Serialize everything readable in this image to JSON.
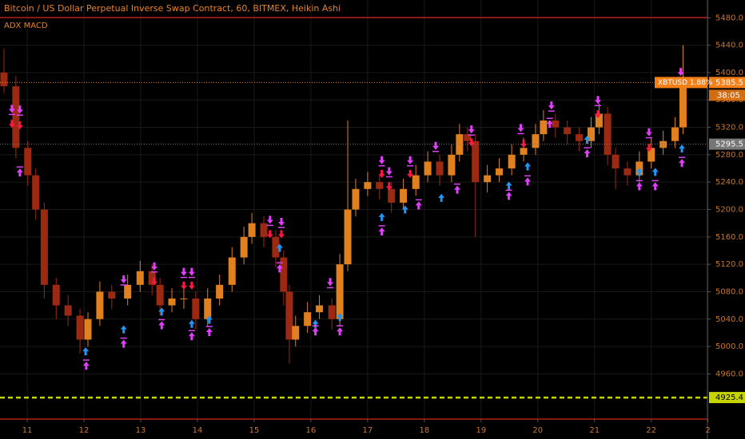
{
  "chart_data": {
    "type": "candlestick",
    "title": "Bitcoin / US Dollar Perpetual Inverse Swap Contract, 60, BITMEX, Heikin Ashi",
    "subtitle": "ADX MACD",
    "x": [
      10.59,
      10.8,
      11.01,
      11.15,
      11.3,
      11.51,
      11.72,
      11.93,
      12.07,
      12.28,
      12.49,
      12.77,
      12.99,
      13.2,
      13.34,
      13.55,
      13.76,
      13.97,
      14.18,
      14.39,
      14.61,
      14.82,
      14.96,
      15.17,
      15.38,
      15.52,
      15.62,
      15.73,
      15.94,
      16.15,
      16.37,
      16.51,
      16.65,
      16.79,
      17,
      17.21,
      17.42,
      17.63,
      17.85,
      18.06,
      18.27,
      18.48,
      18.62,
      18.76,
      18.9,
      19.11,
      19.32,
      19.54,
      19.75,
      19.96,
      20.1,
      20.31,
      20.52,
      20.73,
      20.94,
      21.08,
      21.23,
      21.37,
      21.58,
      21.79,
      22,
      22.21,
      22.42,
      22.56
    ],
    "open": [
      5400,
      5380,
      5290,
      5250,
      5200,
      5090,
      5060,
      5045,
      5010,
      5040,
      5080,
      5070,
      5090,
      5110,
      5090,
      5060,
      5070,
      5070,
      5040,
      5070,
      5090,
      5130,
      5160,
      5180,
      5160,
      5130,
      5080,
      5010,
      5030,
      5050,
      5060,
      5040,
      5120,
      5200,
      5230,
      5240,
      5230,
      5210,
      5230,
      5250,
      5270,
      5250,
      5280,
      5310,
      5300,
      5240,
      5250,
      5260,
      5280,
      5290,
      5310,
      5330,
      5320,
      5310,
      5300,
      5320,
      5340,
      5280,
      5260,
      5250,
      5270,
      5290,
      5300,
      5320
    ],
    "high": [
      5435,
      5395,
      5300,
      5260,
      5210,
      5100,
      5075,
      5055,
      5050,
      5095,
      5090,
      5105,
      5125,
      5120,
      5100,
      5085,
      5085,
      5080,
      5085,
      5105,
      5145,
      5175,
      5195,
      5190,
      5170,
      5140,
      5090,
      5045,
      5065,
      5075,
      5070,
      5135,
      5330,
      5245,
      5255,
      5250,
      5240,
      5245,
      5265,
      5285,
      5280,
      5295,
      5325,
      5320,
      5310,
      5265,
      5275,
      5295,
      5305,
      5325,
      5345,
      5340,
      5330,
      5320,
      5335,
      5355,
      5350,
      5290,
      5270,
      5285,
      5305,
      5315,
      5335,
      5440
    ],
    "low": [
      5370,
      5275,
      5235,
      5185,
      5070,
      5040,
      5030,
      4990,
      5000,
      5030,
      5055,
      5060,
      5080,
      5075,
      5045,
      5050,
      5055,
      5025,
      5030,
      5060,
      5080,
      5120,
      5150,
      5145,
      5115,
      5060,
      4975,
      5000,
      5020,
      5040,
      5025,
      5030,
      5110,
      5190,
      5220,
      5215,
      5195,
      5200,
      5220,
      5240,
      5235,
      5240,
      5270,
      5285,
      5160,
      5225,
      5240,
      5250,
      5270,
      5280,
      5300,
      5305,
      5295,
      5285,
      5290,
      5310,
      5265,
      5230,
      5235,
      5240,
      5260,
      5280,
      5290,
      5310
    ],
    "close": [
      5380,
      5290,
      5250,
      5200,
      5090,
      5060,
      5045,
      5010,
      5040,
      5080,
      5070,
      5090,
      5110,
      5090,
      5060,
      5070,
      5070,
      5040,
      5070,
      5090,
      5130,
      5160,
      5180,
      5160,
      5130,
      5080,
      5010,
      5030,
      5050,
      5060,
      5040,
      5120,
      5200,
      5230,
      5240,
      5230,
      5210,
      5230,
      5250,
      5270,
      5250,
      5280,
      5310,
      5300,
      5240,
      5250,
      5260,
      5280,
      5290,
      5310,
      5330,
      5320,
      5310,
      5300,
      5320,
      5340,
      5280,
      5260,
      5250,
      5270,
      5290,
      5300,
      5320,
      5385.5
    ],
    "up_color": "#e0801e",
    "down_color": "#9c2a12",
    "xlim": [
      10.52,
      22.99
    ],
    "xticks": [
      11,
      12,
      13,
      14,
      15,
      16,
      17,
      18,
      19,
      20,
      21,
      22,
      {
        "value": 23,
        "label": "2"
      }
    ],
    "ylim": [
      4894,
      5506
    ],
    "yticks": [
      {
        "value": 4960,
        "label": "4960.0"
      },
      {
        "value": 5000,
        "label": "5000.0"
      },
      {
        "value": 5040,
        "label": "5040.0"
      },
      {
        "value": 5080,
        "label": "5080.0"
      },
      {
        "value": 5120,
        "label": "5120.0"
      },
      {
        "value": 5160,
        "label": "5160.0"
      },
      {
        "value": 5200,
        "label": "5200.0"
      },
      {
        "value": 5240,
        "label": "5240.0"
      },
      {
        "value": 5280,
        "label": "5280.0"
      },
      {
        "value": 5320,
        "label": "5320.0"
      },
      {
        "value": 5360,
        "label": "5360.0"
      },
      {
        "value": 5400,
        "label": "5400.0"
      },
      {
        "value": 5440,
        "label": "5440.0"
      },
      {
        "value": 5480,
        "label": "5480.0"
      }
    ],
    "grid": true,
    "markers": [
      {
        "color": "#2196f3",
        "shape": "arrow-up",
        "bar": false,
        "x": [
          12.03,
          12.7,
          13.37,
          13.9,
          14.21,
          15.45,
          16.08,
          16.51,
          17.25,
          17.66,
          18.3,
          19.49,
          19.82,
          20.87,
          21.79,
          22.07,
          22.54
        ],
        "values": [
          4993,
          5025,
          5051,
          5033,
          5039,
          5144,
          5033,
          5043,
          5189,
          5200,
          5217,
          5235,
          5263,
          5302,
          5255,
          5255,
          5289
        ]
      },
      {
        "color": "#e040fb",
        "shape": "arrow-down",
        "bar": true,
        "x": [
          10.73,
          10.87,
          12.7,
          13.24,
          13.76,
          13.9,
          15.28,
          15.48,
          16.34,
          17.25,
          17.38,
          17.75,
          18.2,
          18.83,
          19.7,
          20.24,
          21.06,
          21.96,
          22.52
        ],
        "values": [
          5347,
          5346,
          5098,
          5117,
          5109,
          5109,
          5185,
          5182,
          5094,
          5272,
          5256,
          5272,
          5293,
          5317,
          5319,
          5352,
          5360,
          5313,
          5401
        ]
      },
      {
        "color": "#ff1744",
        "shape": "arrow-down",
        "bar": false,
        "x": [
          10.73,
          10.87,
          13.24,
          13.76,
          13.9,
          15.28,
          15.48,
          17.25,
          17.38,
          17.75,
          18.83,
          19.75,
          21.06,
          21.96
        ],
        "values": [
          5325,
          5323,
          5095,
          5089,
          5089,
          5164,
          5164,
          5252,
          5234,
          5252,
          5298,
          5296,
          5339,
          5290
        ]
      },
      {
        "color": "#e040fb",
        "shape": "arrow-up",
        "bar": true,
        "x": [
          10.87,
          12.04,
          12.7,
          13.37,
          13.9,
          14.21,
          15.45,
          16.08,
          16.51,
          17.25,
          17.9,
          18.58,
          19.49,
          19.82,
          20.21,
          20.87,
          21.79,
          22.07,
          22.54
        ],
        "values": [
          5254,
          4972,
          5004,
          5031,
          5015,
          5021,
          5114,
          5022,
          5022,
          5168,
          5206,
          5229,
          5220,
          5241,
          5325,
          5282,
          5234,
          5234,
          5268
        ]
      }
    ],
    "price_lines": [
      {
        "value": 5385.5,
        "color": "#f57f17",
        "style": "dotted",
        "text_color": "#ffffff",
        "note": "XBTUSD 1.88%",
        "countdown": "38:05"
      },
      {
        "value": 5295.5,
        "color": "#777777",
        "style": "dotted",
        "text_color": "#ffffff"
      },
      {
        "value": 4925.4,
        "color": "#c6d400",
        "style": "dashed",
        "text_color": "#000000"
      }
    ]
  }
}
